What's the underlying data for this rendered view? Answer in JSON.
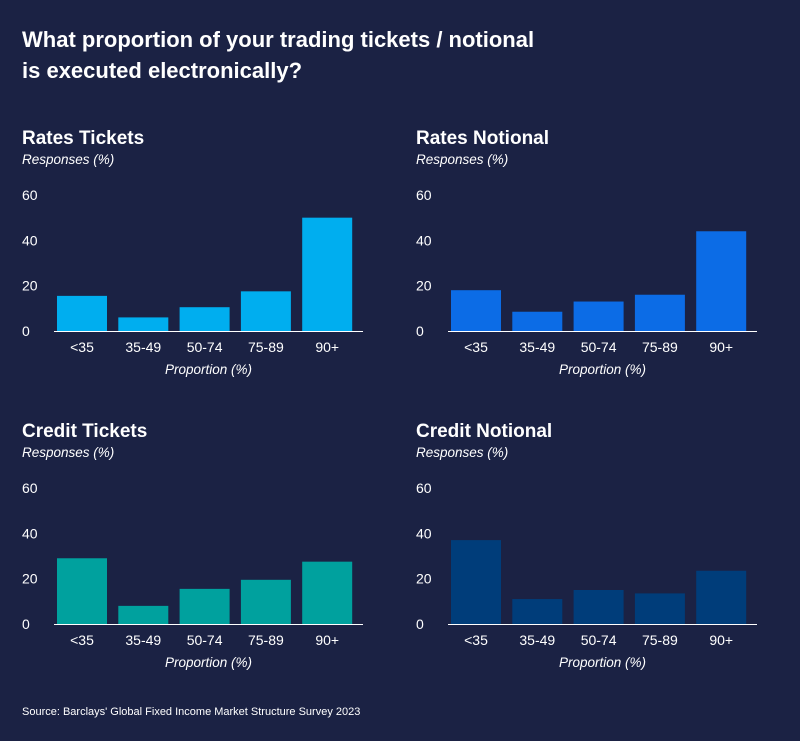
{
  "title": "What proportion of your trading tickets / notional is executed electronically?",
  "source": "Source: Barclays' Global Fixed Income Market Structure Survey 2023",
  "chart_data": [
    {
      "type": "bar",
      "title": "Rates Tickets",
      "ylabel": "Responses (%)",
      "xlabel": "Proportion (%)",
      "categories": [
        "<35",
        "35-49",
        "50-74",
        "75-89",
        "90+"
      ],
      "values": [
        15.5,
        6,
        10.5,
        17.5,
        50
      ],
      "yticks": [
        "0",
        "20",
        "40",
        "60"
      ],
      "ylim": [
        0,
        60
      ],
      "grid": false,
      "color": "#00aeef"
    },
    {
      "type": "bar",
      "title": "Rates Notional",
      "ylabel": "Responses (%)",
      "xlabel": "Proportion (%)",
      "categories": [
        "<35",
        "35-49",
        "50-74",
        "75-89",
        "90+"
      ],
      "values": [
        18,
        8.5,
        13,
        16,
        44
      ],
      "yticks": [
        "0",
        "20",
        "40",
        "60"
      ],
      "ylim": [
        0,
        60
      ],
      "grid": false,
      "color": "#0c6ce6"
    },
    {
      "type": "bar",
      "title": "Credit Tickets",
      "ylabel": "Responses (%)",
      "xlabel": "Proportion (%)",
      "categories": [
        "<35",
        "35-49",
        "50-74",
        "75-89",
        "90+"
      ],
      "values": [
        29,
        8,
        15.5,
        19.5,
        27.5
      ],
      "yticks": [
        "0",
        "20",
        "40",
        "60"
      ],
      "ylim": [
        0,
        60
      ],
      "grid": false,
      "color": "#00a19e"
    },
    {
      "type": "bar",
      "title": "Credit Notional",
      "ylabel": "Responses (%)",
      "xlabel": "Proportion (%)",
      "categories": [
        "<35",
        "35-49",
        "50-74",
        "75-89",
        "90+"
      ],
      "values": [
        37,
        11,
        15,
        13.5,
        23.5
      ],
      "yticks": [
        "0",
        "20",
        "40",
        "60"
      ],
      "ylim": [
        0,
        60
      ],
      "grid": false,
      "color": "#003d7a"
    }
  ]
}
